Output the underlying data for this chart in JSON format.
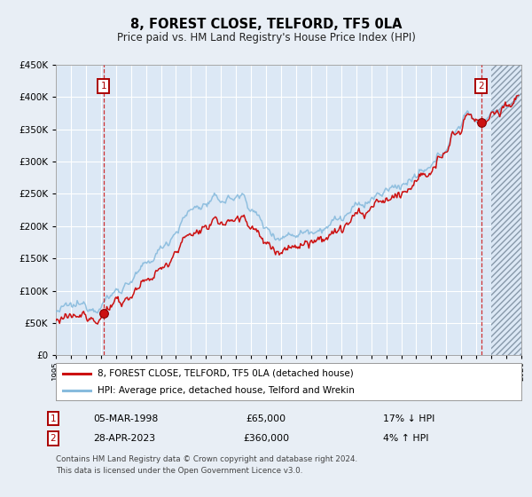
{
  "title": "8, FOREST CLOSE, TELFORD, TF5 0LA",
  "subtitle": "Price paid vs. HM Land Registry's House Price Index (HPI)",
  "legend_line1": "8, FOREST CLOSE, TELFORD, TF5 0LA (detached house)",
  "legend_line2": "HPI: Average price, detached house, Telford and Wrekin",
  "sale1_date": "05-MAR-1998",
  "sale1_price": 65000,
  "sale1_label": "17% ↓ HPI",
  "sale1_year": 1998.17,
  "sale2_date": "28-APR-2023",
  "sale2_price": 360000,
  "sale2_label": "4% ↑ HPI",
  "sale2_year": 2023.32,
  "footnote1": "Contains HM Land Registry data © Crown copyright and database right 2024.",
  "footnote2": "This data is licensed under the Open Government Licence v3.0.",
  "bg_color": "#e8eef5",
  "plot_bg_color": "#dce8f5",
  "grid_color": "#ffffff",
  "hpi_color": "#88bbdd",
  "price_color": "#cc1111",
  "dashed_color": "#cc1111",
  "marker_color": "#cc1111",
  "ylim_max": 450000,
  "ylim_min": 0,
  "xlim_min": 1995,
  "xlim_max": 2026
}
